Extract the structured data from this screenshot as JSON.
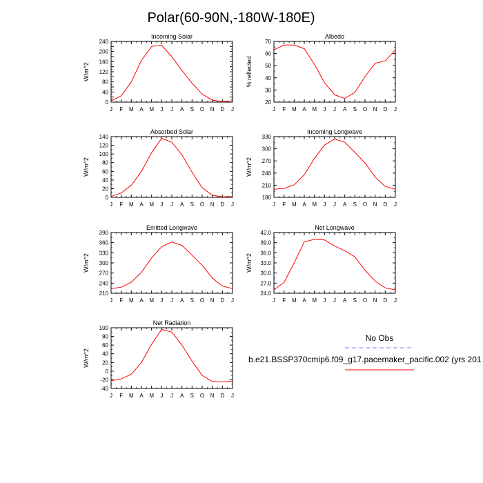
{
  "title": "Polar(60-90N,-180W-180E)",
  "colors": {
    "model": "#ff0000",
    "obs": "#7777ff",
    "frame": "#000000"
  },
  "months": [
    "J",
    "F",
    "M",
    "A",
    "M",
    "J",
    "J",
    "A",
    "S",
    "O",
    "N",
    "D",
    "J"
  ],
  "legend": {
    "obs_label": "No Obs",
    "model_label": "b.e21.BSSP370cmip6.f09_g17.pacemaker_pacific.002 (yrs 201"
  },
  "chart_data": [
    {
      "type": "line",
      "title": "Incoming Solar",
      "ylabel": "W/m^2",
      "ylim": [
        0,
        240
      ],
      "yticks": [
        "0",
        "20",
        "40",
        "60",
        "80",
        "100",
        "120",
        "140",
        "160",
        "180",
        "200",
        "220",
        "240"
      ],
      "ytick_labels": [
        "0",
        "40",
        "80",
        "120",
        "160",
        "200",
        "240"
      ],
      "series": [
        {
          "values": [
            5,
            25,
            80,
            165,
            220,
            225,
            180,
            125,
            75,
            32,
            8,
            2,
            5
          ]
        }
      ]
    },
    {
      "type": "line",
      "title": "Albedo",
      "ylabel": "% reflected",
      "ylim": [
        20,
        70
      ],
      "yticks": [
        "20",
        "30",
        "40",
        "50",
        "60",
        "70"
      ],
      "ytick_labels": [
        "20",
        "30",
        "40",
        "50",
        "60",
        "70"
      ],
      "series": [
        {
          "values": [
            63,
            67,
            67,
            64,
            51,
            36,
            26,
            23,
            28,
            41,
            52,
            54,
            63
          ]
        }
      ]
    },
    {
      "type": "line",
      "title": "Absorbed Solar",
      "ylabel": "W/m^2",
      "ylim": [
        0,
        140
      ],
      "yticks": [
        "0",
        "20",
        "40",
        "60",
        "80",
        "100",
        "120",
        "140"
      ],
      "ytick_labels": [
        "0",
        "20",
        "40",
        "60",
        "80",
        "100",
        "120",
        "140"
      ],
      "series": [
        {
          "values": [
            2,
            10,
            28,
            60,
            103,
            136,
            127,
            98,
            58,
            22,
            5,
            1,
            2
          ]
        }
      ]
    },
    {
      "type": "line",
      "title": "Incoming Longwave",
      "ylabel": "W/m^2",
      "ylim": [
        180,
        330
      ],
      "yticks": [
        "180",
        "210",
        "240",
        "270",
        "300",
        "330"
      ],
      "ytick_labels": [
        "180",
        "210",
        "240",
        "270",
        "300",
        "330"
      ],
      "series": [
        {
          "values": [
            200,
            202,
            211,
            236,
            276,
            309,
            324,
            316,
            291,
            265,
            230,
            207,
            200
          ]
        }
      ]
    },
    {
      "type": "line",
      "title": "Emitted Longwave",
      "ylabel": "W/m^2",
      "ylim": [
        210,
        390
      ],
      "yticks": [
        "210",
        "240",
        "270",
        "300",
        "330",
        "360",
        "390"
      ],
      "ytick_labels": [
        "210",
        "240",
        "270",
        "300",
        "330",
        "360",
        "390"
      ],
      "series": [
        {
          "values": [
            224,
            228,
            243,
            272,
            315,
            348,
            362,
            352,
            323,
            293,
            255,
            231,
            224
          ]
        }
      ]
    },
    {
      "type": "line",
      "title": "Net Longwave",
      "ylabel": "W/m^2",
      "ylim": [
        24,
        42
      ],
      "yticks": [
        "24.0",
        "27.0",
        "30.0",
        "33.0",
        "36.0",
        "39.0",
        "42.0"
      ],
      "ytick_labels": [
        "24.0",
        "27.0",
        "30.0",
        "33.0",
        "36.0",
        "39.0",
        "42.0"
      ],
      "series": [
        {
          "values": [
            25.0,
            27.2,
            33.0,
            39.2,
            40.0,
            39.8,
            38.0,
            36.6,
            34.8,
            30.8,
            27.6,
            25.6,
            25.0
          ]
        }
      ]
    },
    {
      "type": "line",
      "title": "Net Radiation",
      "ylabel": "W/m^2",
      "ylim": [
        -40,
        100
      ],
      "yticks": [
        "-40",
        "-20",
        "0",
        "20",
        "40",
        "60",
        "80",
        "100"
      ],
      "ytick_labels": [
        "-40",
        "-20",
        "0",
        "20",
        "40",
        "60",
        "80",
        "100"
      ],
      "series": [
        {
          "values": [
            -22,
            -18,
            -7,
            20,
            62,
            96,
            90,
            60,
            23,
            -10,
            -24,
            -25,
            -23
          ]
        }
      ]
    }
  ]
}
